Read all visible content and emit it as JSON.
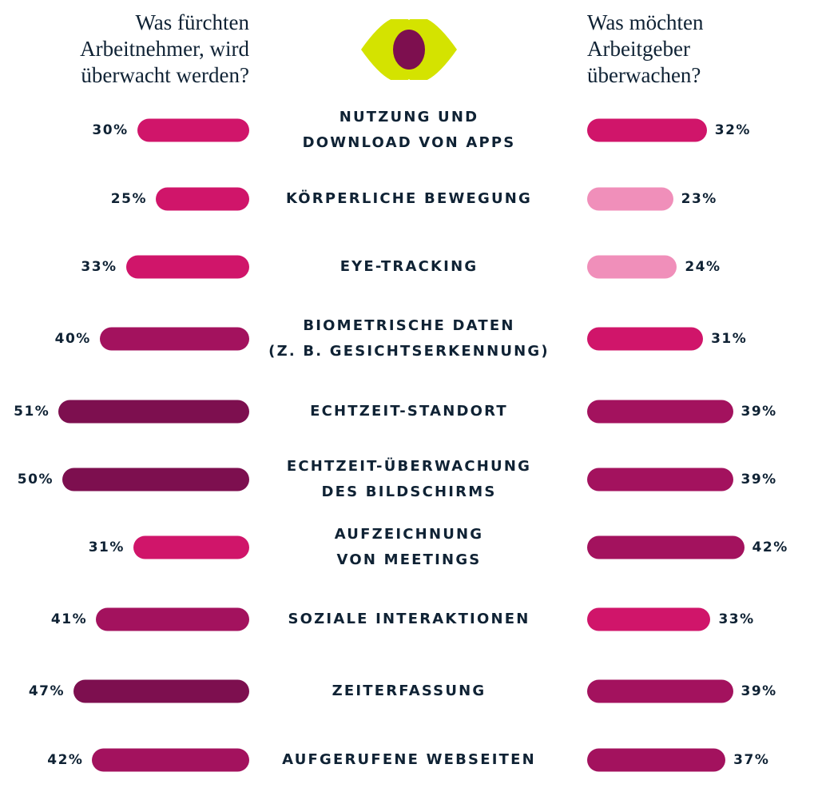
{
  "chart_data": {
    "type": "bar",
    "orientation": "horizontal-butterfly",
    "left_title": "Was fürchten Arbeitnehmer, wird überwacht werden?",
    "right_title": "Was möchten Arbeitgeber überwachen?",
    "categories": [
      "NUTZUNG UND\nDOWNLOAD VON APPS",
      "KÖRPERLICHE BEWEGUNG",
      "EYE-TRACKING",
      "BIOMETRISCHE DATEN\n(Z. B. GESICHTSERKENNUNG)",
      "ECHTZEIT-STANDORT",
      "ECHTZEIT-ÜBERWACHUNG\nDES BILDSCHIRMS",
      "AUFZEICHNUNG\nVON MEETINGS",
      "SOZIALE INTERAKTIONEN",
      "ZEITERFASSUNG",
      "AUFGERUFENE WEBSEITEN"
    ],
    "series": [
      {
        "name": "Was fürchten Arbeitnehmer, wird überwacht werden?",
        "side": "left",
        "values": [
          30,
          25,
          33,
          40,
          51,
          50,
          31,
          41,
          47,
          42
        ]
      },
      {
        "name": "Was möchten Arbeitgeber überwachen?",
        "side": "right",
        "values": [
          32,
          23,
          24,
          31,
          39,
          39,
          42,
          33,
          39,
          37
        ]
      }
    ],
    "unit": "%",
    "colors": {
      "light": "#f08fba",
      "pink": "#d0156a",
      "magenta": "#a3125e",
      "dark": "#7d0f4f",
      "eye": "#d4e300",
      "pupil": "#7d0f4f",
      "text": "#0f2234"
    },
    "grid": false
  }
}
